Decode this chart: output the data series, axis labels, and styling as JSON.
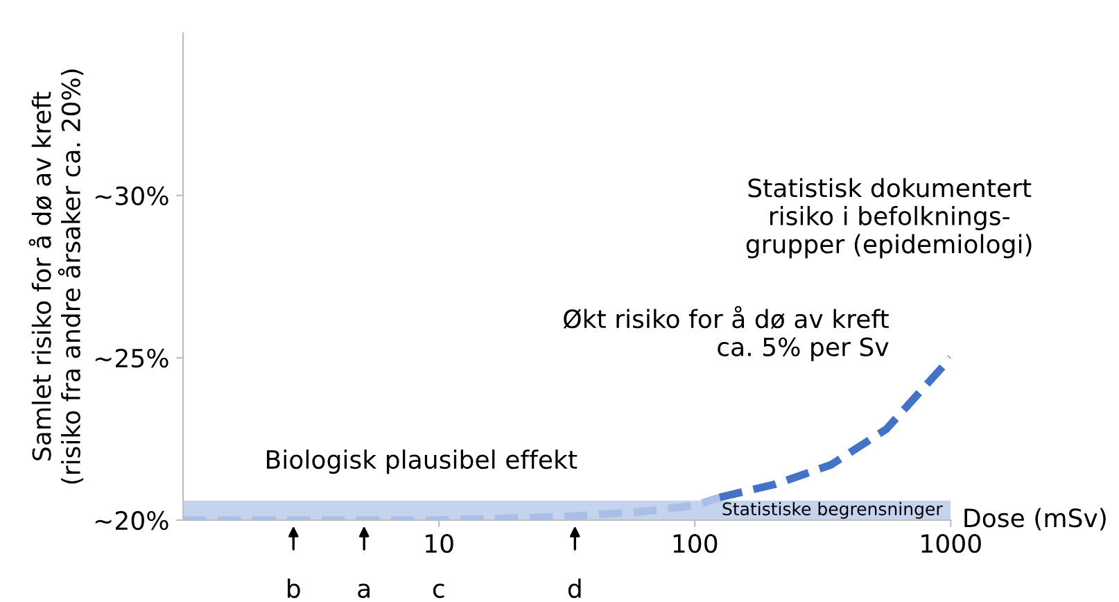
{
  "chart_data": {
    "type": "line",
    "xlabel": "Dose (mSv)",
    "ylabel": "Samlet risiko for å dø av kreft\n(risiko fra andre årsaker ca. 20%)",
    "log": "x",
    "xlim": [
      1,
      1000
    ],
    "xticks": [
      10,
      100,
      1000
    ],
    "ylim": [
      20,
      35
    ],
    "yticks": [
      {
        "value": 20,
        "label": "~20%"
      },
      {
        "value": 25,
        "label": "~25%"
      },
      {
        "value": 30,
        "label": "~30%"
      }
    ],
    "grid": false,
    "legend": false,
    "line_style": "dashed",
    "marker": "none",
    "series": [
      {
        "color": "#a9bfe6",
        "x": [
          1,
          10,
          30,
          60,
          100,
          125
        ],
        "values": [
          20,
          20,
          20.1,
          20.25,
          20.45,
          20.7
        ]
      },
      {
        "color": "#4472c4",
        "x": [
          125,
          205,
          340,
          560,
          1000
        ],
        "values": [
          20.7,
          21.1,
          21.7,
          22.8,
          25
        ]
      }
    ],
    "bands": [
      {
        "axis": "y",
        "from": 20,
        "to": 20.6,
        "label": "Statistiske begrensninger",
        "color": "#c5d3ee"
      }
    ],
    "annotations": [
      "Biologisk plausibel effekt",
      "Statistisk dokumentert\nrisiko i befolknings-\ngrupper (epidemiologi)",
      "Økt risiko for å dø av kreft\nca. 5% per Sv",
      {
        "text": "b",
        "x": 2.7,
        "y": 20
      },
      {
        "text": "a",
        "x": 5.1,
        "y": 20
      },
      "c",
      {
        "text": "d",
        "x": 34,
        "y": 20
      }
    ]
  }
}
